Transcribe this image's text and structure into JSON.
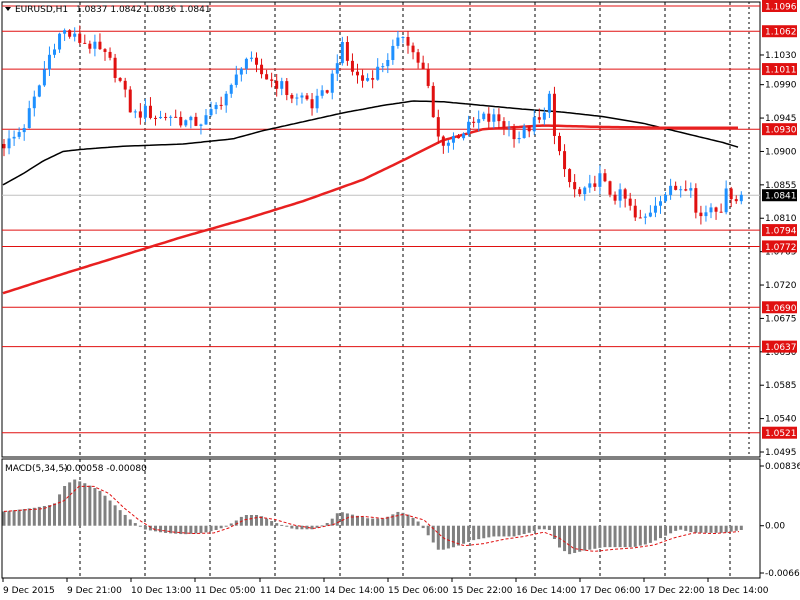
{
  "header": {
    "symbol": "EURUSD,H1",
    "ohlc": "1.0837 1.0842 1.0836 1.0841"
  },
  "macd_header": {
    "name": "MACD(5,34,5)",
    "values": "-0.00058 -0.00080"
  },
  "colors": {
    "background": "#ffffff",
    "bull_candle": "#1e90ff",
    "bear_candle": "#e01010",
    "level_line": "#e01010",
    "ma_fast": "#000000",
    "ma_slow": "#e82020",
    "macd_hist": "#808080",
    "macd_signal": "#e01010",
    "grid": "#000000"
  },
  "chart_data": [
    {
      "type": "line",
      "panel": "price",
      "ylim": [
        1.0495,
        1.1096
      ],
      "y_ticks": [
        "1.1096",
        "1.1062",
        "1.1030",
        "1.0990",
        "1.0945",
        "1.0900",
        "1.0855",
        "1.0841",
        "1.0810",
        "1.0765",
        "1.0720",
        "1.0675",
        "1.0630",
        "1.0585",
        "1.0540",
        "1.0495"
      ],
      "x_tick_labels": [
        "9 Dec 2015",
        "9 Dec 21:00",
        "10 Dec 13:00",
        "11 Dec 05:00",
        "11 Dec 21:00",
        "14 Dec 14:00",
        "15 Dec 06:00",
        "15 Dec 22:00",
        "16 Dec 14:00",
        "17 Dec 06:00",
        "17 Dec 22:00",
        "18 Dec 14:00"
      ],
      "levels": [
        {
          "value": 1.1096,
          "label": "1.1096"
        },
        {
          "value": 1.1062,
          "label": "1.1062"
        },
        {
          "value": 1.1011,
          "label": "1.1011"
        },
        {
          "value": 1.093,
          "label": "1.0930"
        },
        {
          "value": 1.0794,
          "label": "1.0794"
        },
        {
          "value": 1.0772,
          "label": "1.0772"
        },
        {
          "value": 1.069,
          "label": "1.0690"
        },
        {
          "value": 1.0637,
          "label": "1.0637"
        },
        {
          "value": 1.0521,
          "label": "1.0521"
        }
      ],
      "current_price": {
        "value": 1.0841,
        "label": "1.0841"
      },
      "price_anchors": [
        [
          0,
          1.091
        ],
        [
          8,
          1.0915
        ],
        [
          14,
          1.0925
        ],
        [
          20,
          1.0935
        ],
        [
          26,
          1.0955
        ],
        [
          32,
          1.0975
        ],
        [
          38,
          1.1
        ],
        [
          44,
          1.1025
        ],
        [
          50,
          1.1045
        ],
        [
          56,
          1.1058
        ],
        [
          60,
          1.1062
        ],
        [
          66,
          1.1056
        ],
        [
          74,
          1.105
        ],
        [
          82,
          1.1046
        ],
        [
          90,
          1.104
        ],
        [
          98,
          1.1032
        ],
        [
          106,
          1.102
        ],
        [
          114,
          1.1
        ],
        [
          120,
          1.098
        ],
        [
          126,
          1.0958
        ],
        [
          132,
          1.0948
        ],
        [
          140,
          1.0955
        ],
        [
          148,
          1.095
        ],
        [
          156,
          1.0945
        ],
        [
          164,
          1.095
        ],
        [
          172,
          1.0945
        ],
        [
          180,
          1.094
        ],
        [
          188,
          1.0938
        ],
        [
          196,
          1.094
        ],
        [
          204,
          1.0945
        ],
        [
          212,
          1.096
        ],
        [
          220,
          1.0975
        ],
        [
          228,
          1.0985
        ],
        [
          234,
          1.1005
        ],
        [
          240,
          1.103
        ],
        [
          246,
          1.102
        ],
        [
          252,
          1.101
        ],
        [
          260,
          1.1002
        ],
        [
          268,
          1.0995
        ],
        [
          276,
          1.099
        ],
        [
          284,
          1.0978
        ],
        [
          292,
          1.097
        ],
        [
          300,
          1.0975
        ],
        [
          308,
          1.0962
        ],
        [
          316,
          1.097
        ],
        [
          322,
          1.0982
        ],
        [
          328,
          1.1
        ],
        [
          334,
          1.103
        ],
        [
          338,
          1.104
        ],
        [
          342,
          1.1025
        ],
        [
          348,
          1.101
        ],
        [
          354,
          1.1
        ],
        [
          360,
          1.0995
        ],
        [
          368,
          1.1005
        ],
        [
          376,
          1.1012
        ],
        [
          382,
          1.1025
        ],
        [
          388,
          1.1035
        ],
        [
          394,
          1.1045
        ],
        [
          398,
          1.106
        ],
        [
          404,
          1.105
        ],
        [
          410,
          1.103
        ],
        [
          416,
          1.1018
        ],
        [
          420,
          1.1005
        ],
        [
          424,
          1.0985
        ],
        [
          428,
          1.0955
        ],
        [
          432,
          1.092
        ],
        [
          438,
          1.0915
        ],
        [
          444,
          1.0912
        ],
        [
          450,
          1.092
        ],
        [
          456,
          1.0925
        ],
        [
          462,
          1.093
        ],
        [
          468,
          1.0935
        ],
        [
          474,
          1.094
        ],
        [
          480,
          1.0945
        ],
        [
          486,
          1.0942
        ],
        [
          492,
          1.0945
        ],
        [
          498,
          1.0938
        ],
        [
          504,
          1.0932
        ],
        [
          510,
          1.0925
        ],
        [
          516,
          1.092
        ],
        [
          522,
          1.093
        ],
        [
          528,
          1.0935
        ],
        [
          534,
          1.0945
        ],
        [
          538,
          1.093
        ],
        [
          542,
          1.096
        ],
        [
          546,
          1.099
        ],
        [
          550,
          1.092
        ],
        [
          556,
          1.089
        ],
        [
          562,
          1.087
        ],
        [
          568,
          1.085
        ],
        [
          576,
          1.084
        ],
        [
          584,
          1.0845
        ],
        [
          590,
          1.086
        ],
        [
          596,
          1.0865
        ],
        [
          602,
          1.085
        ],
        [
          610,
          1.084
        ],
        [
          618,
          1.084
        ],
        [
          624,
          1.083
        ],
        [
          630,
          1.081
        ],
        [
          638,
          1.0805
        ],
        [
          644,
          1.0815
        ],
        [
          650,
          1.083
        ],
        [
          656,
          1.084
        ],
        [
          664,
          1.0845
        ],
        [
          672,
          1.085
        ],
        [
          680,
          1.0855
        ],
        [
          688,
          1.086
        ],
        [
          692,
          1.0815
        ],
        [
          698,
          1.0812
        ],
        [
          704,
          1.0825
        ],
        [
          710,
          1.083
        ],
        [
          716,
          1.082
        ],
        [
          720,
          1.084
        ],
        [
          726,
          1.0845
        ],
        [
          732,
          1.0838
        ],
        [
          737,
          1.0841
        ]
      ],
      "series": [
        {
          "name": "",
          "color": "#000000",
          "values": [
            [
              0,
              1.0855
            ],
            [
              20,
              1.087
            ],
            [
              40,
              1.0887
            ],
            [
              60,
              1.09
            ],
            [
              80,
              1.0903
            ],
            [
              120,
              1.0907
            ],
            [
              180,
              1.091
            ],
            [
              230,
              1.0917
            ],
            [
              260,
              1.0928
            ],
            [
              300,
              1.094
            ],
            [
              340,
              1.0952
            ],
            [
              380,
              1.0962
            ],
            [
              410,
              1.0968
            ],
            [
              440,
              1.0967
            ],
            [
              480,
              1.0962
            ],
            [
              520,
              1.0957
            ],
            [
              560,
              1.0953
            ],
            [
              600,
              1.0947
            ],
            [
              640,
              1.0938
            ],
            [
              680,
              1.0925
            ],
            [
              720,
              1.0912
            ],
            [
              737,
              1.0905
            ]
          ]
        },
        {
          "name": "",
          "color": "#e82020",
          "values": [
            [
              0,
              1.0709
            ],
            [
              60,
              1.0735
            ],
            [
              120,
              1.076
            ],
            [
              180,
              1.0785
            ],
            [
              240,
              1.0808
            ],
            [
              300,
              1.0833
            ],
            [
              360,
              1.0862
            ],
            [
              400,
              1.0888
            ],
            [
              440,
              1.0915
            ],
            [
              480,
              1.093
            ],
            [
              540,
              1.0935
            ],
            [
              600,
              1.0933
            ],
            [
              660,
              1.0932
            ],
            [
              737,
              1.0932
            ]
          ]
        }
      ]
    },
    {
      "type": "bar",
      "panel": "macd",
      "ylim": [
        -0.00662,
        0.00836
      ],
      "y_ticks": [
        "0.00836",
        "0.00",
        "-0.00662"
      ],
      "hist_anchors": [
        [
          0,
          0.002
        ],
        [
          30,
          0.0025
        ],
        [
          50,
          0.003
        ],
        [
          60,
          0.0055
        ],
        [
          70,
          0.0065
        ],
        [
          80,
          0.006
        ],
        [
          95,
          0.005
        ],
        [
          110,
          0.003
        ],
        [
          125,
          0.001
        ],
        [
          140,
          -0.0005
        ],
        [
          160,
          -0.001
        ],
        [
          180,
          -0.0012
        ],
        [
          200,
          -0.001
        ],
        [
          215,
          -0.0005
        ],
        [
          230,
          0.0005
        ],
        [
          240,
          0.0015
        ],
        [
          255,
          0.0015
        ],
        [
          270,
          0.0005
        ],
        [
          290,
          -0.0005
        ],
        [
          310,
          -0.0005
        ],
        [
          325,
          0.0005
        ],
        [
          335,
          0.002
        ],
        [
          350,
          0.0015
        ],
        [
          365,
          0.001
        ],
        [
          380,
          0.001
        ],
        [
          395,
          0.002
        ],
        [
          405,
          0.0015
        ],
        [
          415,
          0.0005
        ],
        [
          425,
          -0.0015
        ],
        [
          435,
          -0.0035
        ],
        [
          450,
          -0.003
        ],
        [
          470,
          -0.002
        ],
        [
          490,
          -0.0015
        ],
        [
          510,
          -0.0015
        ],
        [
          525,
          -0.001
        ],
        [
          535,
          -0.0005
        ],
        [
          545,
          -0.0005
        ],
        [
          555,
          -0.003
        ],
        [
          565,
          -0.004
        ],
        [
          580,
          -0.0035
        ],
        [
          600,
          -0.003
        ],
        [
          615,
          -0.003
        ],
        [
          630,
          -0.003
        ],
        [
          645,
          -0.0025
        ],
        [
          660,
          -0.0015
        ],
        [
          675,
          -0.0005
        ],
        [
          690,
          -0.001
        ],
        [
          705,
          -0.001
        ],
        [
          720,
          -0.001
        ],
        [
          737,
          -0.0006
        ]
      ],
      "signal_anchors": [
        [
          0,
          0.002
        ],
        [
          40,
          0.0024
        ],
        [
          60,
          0.0035
        ],
        [
          75,
          0.0055
        ],
        [
          90,
          0.0055
        ],
        [
          105,
          0.0045
        ],
        [
          120,
          0.0025
        ],
        [
          135,
          0.0008
        ],
        [
          150,
          -0.0005
        ],
        [
          170,
          -0.0009
        ],
        [
          190,
          -0.0011
        ],
        [
          210,
          -0.001
        ],
        [
          225,
          -0.0003
        ],
        [
          240,
          0.0008
        ],
        [
          255,
          0.0012
        ],
        [
          270,
          0.0009
        ],
        [
          290,
          0.0001
        ],
        [
          310,
          -0.0004
        ],
        [
          330,
          0.0002
        ],
        [
          345,
          0.0012
        ],
        [
          360,
          0.0013
        ],
        [
          380,
          0.001
        ],
        [
          400,
          0.0016
        ],
        [
          420,
          0.0008
        ],
        [
          440,
          -0.0018
        ],
        [
          460,
          -0.0028
        ],
        [
          480,
          -0.0025
        ],
        [
          500,
          -0.0019
        ],
        [
          520,
          -0.0015
        ],
        [
          540,
          -0.0009
        ],
        [
          555,
          -0.0017
        ],
        [
          570,
          -0.0032
        ],
        [
          590,
          -0.0036
        ],
        [
          610,
          -0.0033
        ],
        [
          630,
          -0.0031
        ],
        [
          650,
          -0.0027
        ],
        [
          670,
          -0.0017
        ],
        [
          690,
          -0.001
        ],
        [
          710,
          -0.0011
        ],
        [
          737,
          -0.0008
        ]
      ]
    }
  ]
}
